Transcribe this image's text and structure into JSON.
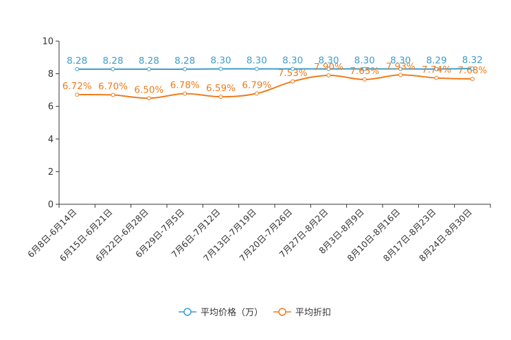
{
  "chart_data": {
    "type": "line",
    "title": "",
    "xlabel": "",
    "ylabel": "",
    "ylim": [
      0,
      10
    ],
    "yticks": [
      0,
      2,
      4,
      6,
      8,
      10
    ],
    "grid": false,
    "legend_position": "bottom-center",
    "categories": [
      "6月8日-6月14日",
      "6月15日-6月21日",
      "6月22日-6月28日",
      "6月29日-7月5日",
      "7月6日-7月12日",
      "7月13日-7月19日",
      "7月20日-7月26日",
      "7月27日-8月2日",
      "8月3日-8月9日",
      "8月10日-8月16日",
      "8月17日-8月23日",
      "8月24日-8月30日"
    ],
    "series": [
      {
        "name": "平均价格（万）",
        "color": "#3d9ccc",
        "values": [
          8.28,
          8.28,
          8.28,
          8.28,
          8.3,
          8.3,
          8.3,
          8.3,
          8.3,
          8.3,
          8.29,
          8.32
        ],
        "labels": [
          "8.28",
          "8.28",
          "8.28",
          "8.28",
          "8.30",
          "8.30",
          "8.30",
          "8.30",
          "8.30",
          "8.30",
          "8.29",
          "8.32"
        ]
      },
      {
        "name": "平均折扣",
        "color": "#f07a1a",
        "values": [
          6.72,
          6.7,
          6.5,
          6.78,
          6.59,
          6.79,
          7.53,
          7.9,
          7.65,
          7.93,
          7.74,
          7.68
        ],
        "labels": [
          "6.72%",
          "6.70%",
          "6.50%",
          "6.78%",
          "6.59%",
          "6.79%",
          "7.53%",
          "7.90%",
          "7.65%",
          "7.93%",
          "7.74%",
          "7.68%"
        ]
      }
    ]
  }
}
